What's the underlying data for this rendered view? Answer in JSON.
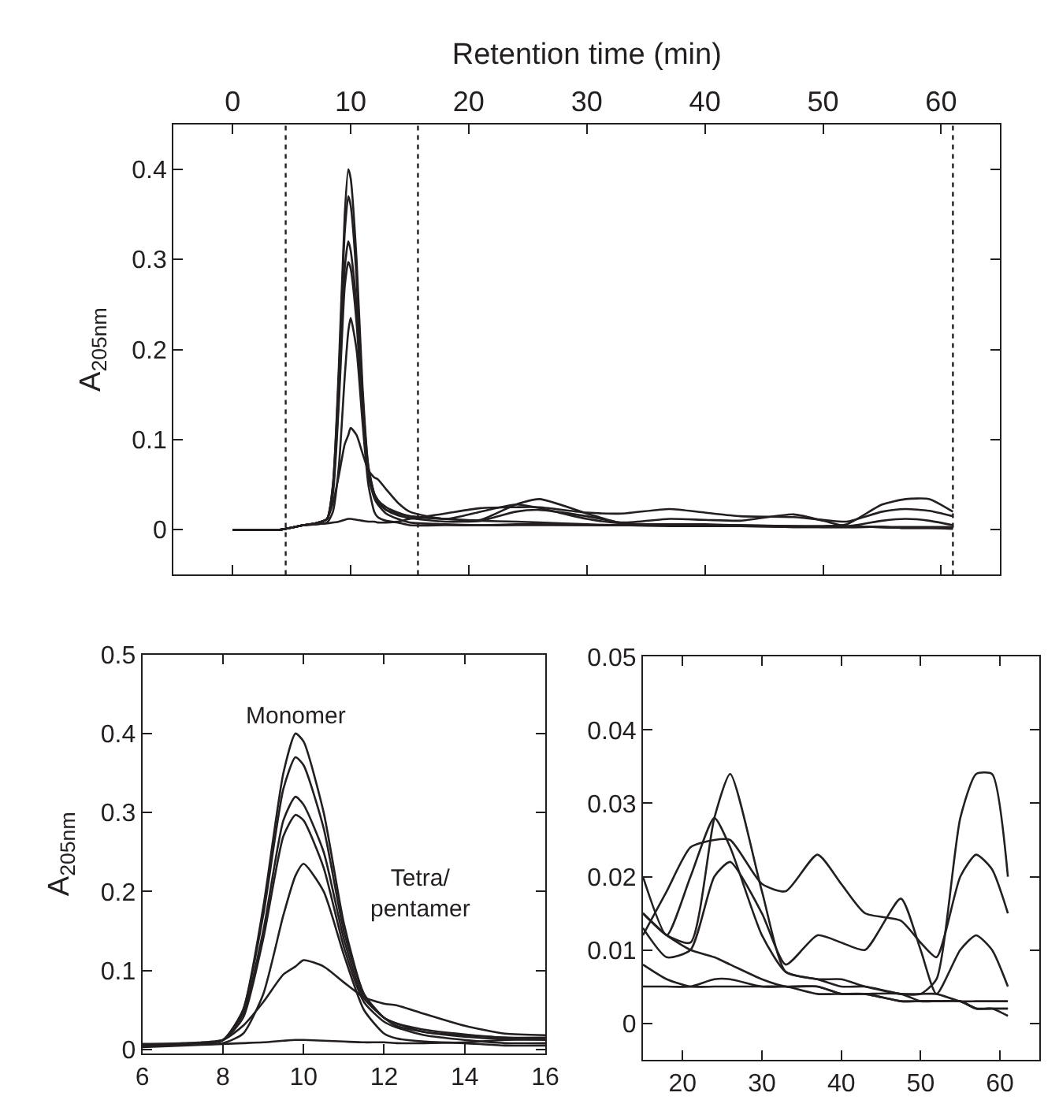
{
  "chart_data": [
    {
      "type": "line",
      "xlabel": "Retention time (min)",
      "ylabel": "A$_{205nm}$",
      "xlim": [
        -5,
        65
      ],
      "ylim": [
        -0.05,
        0.45
      ],
      "xticks": [
        0,
        10,
        20,
        30,
        40,
        50,
        60
      ],
      "yticks": [
        0,
        0.1,
        0.2,
        0.3,
        0.4
      ],
      "line_style": "solid",
      "x": [
        0,
        4,
        6,
        7,
        8,
        8.5,
        9,
        9.5,
        9.8,
        10,
        10.5,
        11,
        11.5,
        12,
        12.3,
        13,
        14,
        15,
        18,
        21,
        24,
        26,
        30,
        33,
        37,
        40,
        43,
        47.5,
        50,
        52,
        55,
        57,
        59,
        61
      ],
      "ref_lines": [
        {
          "axis": "x",
          "value": 4.5,
          "line_style": "dotted",
          "color": "#231f20"
        },
        {
          "axis": "x",
          "value": 15.7,
          "line_style": "dotted",
          "color": "#231f20"
        },
        {
          "axis": "x",
          "value": 61,
          "line_style": "dotted",
          "color": "#231f20"
        }
      ],
      "series": [
        {
          "color": "#231f20",
          "values": [
            0,
            0,
            0.005,
            0.007,
            0.012,
            0.05,
            0.18,
            0.35,
            0.4,
            0.39,
            0.3,
            0.16,
            0.07,
            0.04,
            0.033,
            0.022,
            0.018,
            0.015,
            0.012,
            0.01,
            0.009,
            0.008,
            0.006,
            0.005,
            0.005,
            0.004,
            0.004,
            0.003,
            0.003,
            0.003,
            0.003,
            0.002,
            0.002,
            0.002
          ]
        },
        {
          "color": "#231f20",
          "values": [
            0,
            0,
            0.005,
            0.007,
            0.012,
            0.05,
            0.17,
            0.33,
            0.37,
            0.36,
            0.28,
            0.15,
            0.07,
            0.04,
            0.033,
            0.025,
            0.019,
            0.015,
            0.012,
            0.011,
            0.028,
            0.034,
            0.018,
            0.007,
            0.006,
            0.005,
            0.005,
            0.004,
            0.004,
            0.006,
            0.028,
            0.034,
            0.034,
            0.02
          ]
        },
        {
          "color": "#231f20",
          "values": [
            0,
            0,
            0.005,
            0.007,
            0.012,
            0.045,
            0.15,
            0.29,
            0.32,
            0.31,
            0.25,
            0.14,
            0.065,
            0.04,
            0.03,
            0.022,
            0.016,
            0.013,
            0.009,
            0.01,
            0.02,
            0.022,
            0.015,
            0.008,
            0.012,
            0.011,
            0.01,
            0.017,
            0.01,
            0.004,
            0.01,
            0.012,
            0.01,
            0.005
          ]
        },
        {
          "color": "#231f20",
          "values": [
            0,
            0,
            0.005,
            0.007,
            0.012,
            0.04,
            0.14,
            0.27,
            0.297,
            0.29,
            0.23,
            0.13,
            0.06,
            0.035,
            0.028,
            0.018,
            0.012,
            0.008,
            0.006,
            0.005,
            0.005,
            0.005,
            0.005,
            0.005,
            0.004,
            0.004,
            0.004,
            0.003,
            0.003,
            0.003,
            0.003,
            0.002,
            0.002,
            0.002
          ]
        },
        {
          "color": "#231f20",
          "values": [
            0,
            0,
            0.005,
            0.006,
            0.008,
            0.02,
            0.07,
            0.17,
            0.22,
            0.235,
            0.2,
            0.12,
            0.05,
            0.02,
            0.014,
            0.01,
            0.008,
            0.005,
            0.005,
            0.005,
            0.006,
            0.006,
            0.005,
            0.005,
            0.005,
            0.004,
            0.004,
            0.004,
            0.003,
            0.003,
            0.003,
            0.002,
            0.002,
            0.001
          ]
        },
        {
          "color": "#231f20",
          "values": [
            0,
            0,
            0.005,
            0.007,
            0.012,
            0.03,
            0.06,
            0.095,
            0.105,
            0.113,
            0.105,
            0.085,
            0.066,
            0.058,
            0.056,
            0.045,
            0.03,
            0.02,
            0.012,
            0.02,
            0.028,
            0.024,
            0.012,
            0.007,
            0.006,
            0.006,
            0.005,
            0.004,
            0.004,
            0.004,
            0.003,
            0.003,
            0.003,
            0.003
          ]
        },
        {
          "color": "#231f20",
          "values": [
            0,
            0,
            0.005,
            0.006,
            0.007,
            0.008,
            0.009,
            0.011,
            0.012,
            0.012,
            0.011,
            0.01,
            0.009,
            0.009,
            0.008,
            0.008,
            0.009,
            0.012,
            0.018,
            0.024,
            0.025,
            0.025,
            0.019,
            0.018,
            0.023,
            0.019,
            0.015,
            0.014,
            0.011,
            0.009,
            0.02,
            0.023,
            0.021,
            0.015
          ]
        }
      ]
    },
    {
      "type": "line",
      "ylabel": "A$_{205nm}$",
      "xlim": [
        6,
        16
      ],
      "ylim": [
        -0.005,
        0.5
      ],
      "xticks": [
        6,
        8,
        10,
        12,
        14,
        16
      ],
      "yticks": [
        0,
        0.1,
        0.2,
        0.3,
        0.4,
        0.5
      ],
      "line_style": "solid",
      "x": [
        6,
        7,
        8,
        8.5,
        9,
        9.5,
        9.8,
        10,
        10.5,
        11,
        11.5,
        12,
        12.3,
        13,
        14,
        15,
        16
      ],
      "annotations": [
        "Monomer",
        "Tetra/\npentamer"
      ],
      "series": [
        {
          "color": "#231f20",
          "values": [
            0.005,
            0.007,
            0.012,
            0.05,
            0.18,
            0.35,
            0.4,
            0.39,
            0.3,
            0.16,
            0.07,
            0.04,
            0.033,
            0.022,
            0.018,
            0.015,
            0.015
          ]
        },
        {
          "color": "#231f20",
          "values": [
            0.005,
            0.007,
            0.012,
            0.05,
            0.17,
            0.33,
            0.37,
            0.36,
            0.28,
            0.15,
            0.07,
            0.04,
            0.033,
            0.025,
            0.019,
            0.015,
            0.014
          ]
        },
        {
          "color": "#231f20",
          "values": [
            0.005,
            0.007,
            0.012,
            0.045,
            0.15,
            0.29,
            0.32,
            0.31,
            0.25,
            0.14,
            0.065,
            0.04,
            0.03,
            0.022,
            0.016,
            0.013,
            0.012
          ]
        },
        {
          "color": "#231f20",
          "values": [
            0.005,
            0.007,
            0.012,
            0.04,
            0.14,
            0.27,
            0.297,
            0.29,
            0.23,
            0.13,
            0.06,
            0.035,
            0.028,
            0.018,
            0.012,
            0.008,
            0.008
          ]
        },
        {
          "color": "#231f20",
          "values": [
            0.005,
            0.006,
            0.008,
            0.02,
            0.07,
            0.17,
            0.22,
            0.235,
            0.2,
            0.12,
            0.05,
            0.02,
            0.014,
            0.01,
            0.008,
            0.005,
            0.005
          ]
        },
        {
          "color": "#231f20",
          "values": [
            0.007,
            0.008,
            0.012,
            0.03,
            0.06,
            0.095,
            0.105,
            0.113,
            0.105,
            0.085,
            0.066,
            0.058,
            0.056,
            0.045,
            0.03,
            0.02,
            0.018
          ]
        },
        {
          "color": "#231f20",
          "values": [
            0.003,
            0.005,
            0.007,
            0.008,
            0.009,
            0.011,
            0.012,
            0.012,
            0.011,
            0.01,
            0.009,
            0.009,
            0.008,
            0.008,
            0.009,
            0.012,
            0.013
          ]
        }
      ]
    },
    {
      "type": "line",
      "xlim": [
        15,
        65
      ],
      "ylim": [
        -0.005,
        0.05
      ],
      "xticks": [
        20,
        30,
        40,
        50,
        60
      ],
      "yticks": [
        0,
        0.01,
        0.02,
        0.03,
        0.04,
        0.05
      ],
      "line_style": "solid",
      "x": [
        15,
        18,
        21,
        24,
        26,
        30,
        33,
        37,
        40,
        43,
        47.5,
        50,
        52,
        55,
        57,
        59,
        61
      ],
      "series": [
        {
          "color": "#231f20",
          "values": [
            0.015,
            0.012,
            0.01,
            0.009,
            0.008,
            0.006,
            0.005,
            0.005,
            0.004,
            0.004,
            0.003,
            0.003,
            0.003,
            0.003,
            0.002,
            0.002,
            0.002
          ]
        },
        {
          "color": "#231f20",
          "values": [
            0.015,
            0.012,
            0.011,
            0.028,
            0.034,
            0.018,
            0.007,
            0.006,
            0.005,
            0.005,
            0.004,
            0.004,
            0.006,
            0.028,
            0.034,
            0.034,
            0.02
          ]
        },
        {
          "color": "#231f20",
          "values": [
            0.013,
            0.009,
            0.01,
            0.02,
            0.022,
            0.015,
            0.008,
            0.012,
            0.011,
            0.01,
            0.017,
            0.01,
            0.004,
            0.01,
            0.012,
            0.01,
            0.005
          ]
        },
        {
          "color": "#231f20",
          "values": [
            0.008,
            0.006,
            0.005,
            0.005,
            0.005,
            0.005,
            0.005,
            0.004,
            0.004,
            0.004,
            0.003,
            0.003,
            0.003,
            0.003,
            0.002,
            0.002,
            0.002
          ]
        },
        {
          "color": "#231f20",
          "values": [
            0.005,
            0.005,
            0.005,
            0.006,
            0.006,
            0.005,
            0.005,
            0.005,
            0.004,
            0.004,
            0.004,
            0.003,
            0.003,
            0.003,
            0.002,
            0.002,
            0.001
          ]
        },
        {
          "color": "#231f20",
          "values": [
            0.02,
            0.012,
            0.02,
            0.028,
            0.024,
            0.012,
            0.007,
            0.006,
            0.006,
            0.005,
            0.004,
            0.004,
            0.004,
            0.003,
            0.003,
            0.003,
            0.003
          ]
        },
        {
          "color": "#231f20",
          "values": [
            0.012,
            0.018,
            0.024,
            0.025,
            0.025,
            0.019,
            0.018,
            0.023,
            0.019,
            0.015,
            0.014,
            0.011,
            0.009,
            0.02,
            0.023,
            0.021,
            0.015
          ]
        }
      ]
    }
  ]
}
